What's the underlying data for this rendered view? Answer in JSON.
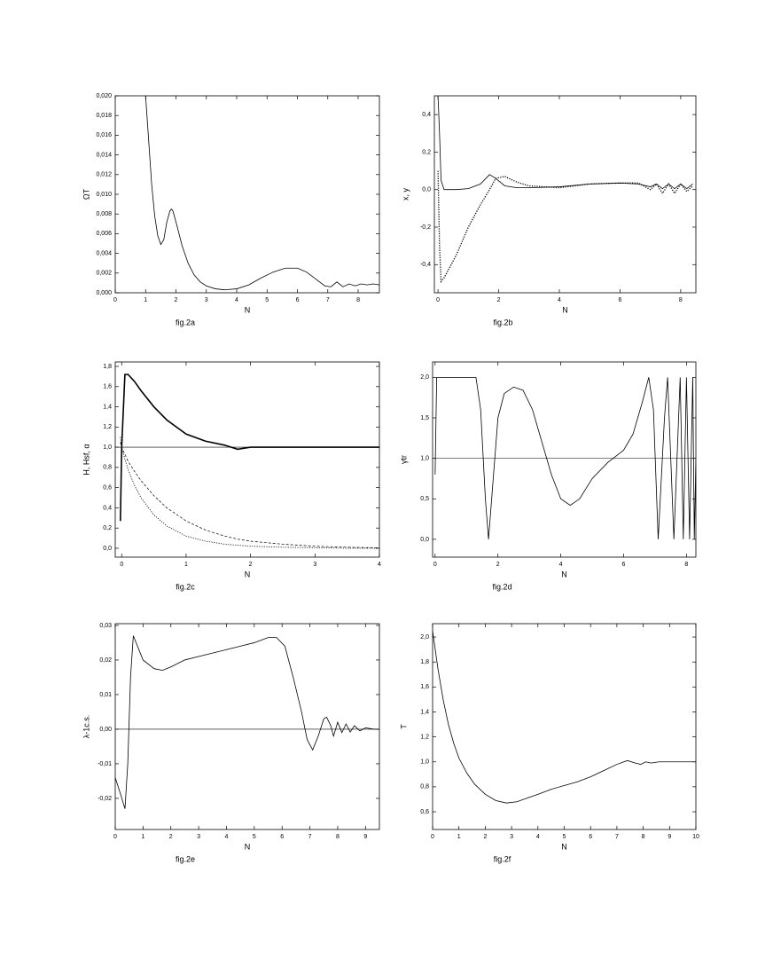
{
  "chart_data": [
    {
      "type": "line",
      "caption": "fig.2a",
      "x_label": "N",
      "y_label": "ΩT",
      "xlim": [
        0,
        8.7
      ],
      "xticks": [
        0,
        1,
        2,
        3,
        4,
        5,
        6,
        7,
        8
      ],
      "ylim": [
        0,
        0.02
      ],
      "yticks": [
        {
          "value": 0,
          "label": "0,000"
        },
        {
          "value": 0.002,
          "label": "0,002"
        },
        {
          "value": 0.004,
          "label": "0,004"
        },
        {
          "value": 0.006,
          "label": "0,006"
        },
        {
          "value": 0.008,
          "label": "0,008"
        },
        {
          "value": 0.01,
          "label": "0,010"
        },
        {
          "value": 0.012,
          "label": "0,012"
        },
        {
          "value": 0.014,
          "label": "0,014"
        },
        {
          "value": 0.016,
          "label": "0,016"
        },
        {
          "value": 0.018,
          "label": "0,018"
        },
        {
          "value": 0.02,
          "label": "0,020"
        }
      ],
      "x": [
        1.0,
        1.1,
        1.2,
        1.3,
        1.4,
        1.5,
        1.6,
        1.7,
        1.8,
        1.85,
        1.9,
        2.0,
        2.2,
        2.4,
        2.6,
        2.8,
        3.0,
        3.3,
        3.6,
        4.0,
        4.4,
        4.8,
        5.2,
        5.6,
        6.0,
        6.3,
        6.6,
        6.9,
        7.1,
        7.3,
        7.5,
        7.7,
        7.9,
        8.1,
        8.3,
        8.5,
        8.7
      ],
      "series": [
        {
          "color": "#000000",
          "style": "solid",
          "width": 0.8,
          "values": [
            0.02,
            0.0155,
            0.011,
            0.0078,
            0.0058,
            0.0049,
            0.0054,
            0.0072,
            0.0083,
            0.0085,
            0.0083,
            0.0072,
            0.0048,
            0.003,
            0.0018,
            0.0011,
            0.0007,
            0.0004,
            0.0003,
            0.0004,
            0.0008,
            0.0015,
            0.0021,
            0.0025,
            0.0025,
            0.0021,
            0.0014,
            0.0007,
            0.0006,
            0.0011,
            0.0006,
            0.0009,
            0.0007,
            0.0009,
            0.0008,
            0.0009,
            0.0008
          ]
        }
      ]
    },
    {
      "type": "line",
      "caption": "fig.2b",
      "x_label": "N",
      "y_label": "x, y",
      "xlim": [
        -0.12,
        8.5
      ],
      "xticks": [
        0,
        2,
        4,
        6,
        8
      ],
      "ylim": [
        -0.55,
        0.5
      ],
      "yticks": [
        {
          "value": -0.4,
          "label": "-0,4"
        },
        {
          "value": -0.2,
          "label": "-0,2"
        },
        {
          "value": 0,
          "label": "0,0"
        },
        {
          "value": 0.2,
          "label": "0,2"
        },
        {
          "value": 0.4,
          "label": "0,4"
        }
      ],
      "x": [
        0,
        0.05,
        0.1,
        0.2,
        0.6,
        1.0,
        1.4,
        1.7,
        1.9,
        2.2,
        2.6,
        3,
        4,
        5,
        6,
        6.6,
        7.0,
        7.2,
        7.4,
        7.6,
        7.8,
        8.0,
        8.2,
        8.4
      ],
      "series": [
        {
          "color": "#000000",
          "style": "solid",
          "width": 0.8,
          "values": [
            0.5,
            0.3,
            0.05,
            0.0,
            0.0,
            0.005,
            0.03,
            0.08,
            0.06,
            0.02,
            0.01,
            0.01,
            0.015,
            0.03,
            0.035,
            0.03,
            0.015,
            0.03,
            0.005,
            0.03,
            0.005,
            0.03,
            0.005,
            0.03
          ]
        },
        {
          "color": "#000000",
          "style": "dotted",
          "width": 1.3,
          "values": [
            0.1,
            -0.3,
            -0.49,
            -0.47,
            -0.35,
            -0.2,
            -0.08,
            0.0,
            0.06,
            0.07,
            0.04,
            0.02,
            0.01,
            0.03,
            0.035,
            0.035,
            0.0,
            0.03,
            -0.02,
            0.03,
            -0.02,
            0.03,
            -0.01,
            0.02
          ]
        }
      ]
    },
    {
      "type": "line",
      "caption": "fig.2c",
      "x_label": "N",
      "y_label": "H, Hsf, α",
      "hline": 1,
      "xlim": [
        -0.1,
        4
      ],
      "xticks": [
        0,
        1,
        2,
        3,
        4
      ],
      "ylim": [
        -0.088,
        1.844
      ],
      "yticks": [
        {
          "value": 0,
          "label": "0,0"
        },
        {
          "value": 0.2,
          "label": "0,2"
        },
        {
          "value": 0.4,
          "label": "0,4"
        },
        {
          "value": 0.6,
          "label": "0,6"
        },
        {
          "value": 0.8,
          "label": "0,8"
        },
        {
          "value": 1,
          "label": "1,0"
        },
        {
          "value": 1.2,
          "label": "1,2"
        },
        {
          "value": 1.4,
          "label": "1,4"
        },
        {
          "value": 1.6,
          "label": "1,6"
        },
        {
          "value": 1.8,
          "label": "1,8"
        }
      ],
      "x": [
        -0.02,
        0.0,
        0.05,
        0.1,
        0.2,
        0.3,
        0.5,
        0.7,
        1.0,
        1.3,
        1.6,
        1.8,
        2.0,
        2.5,
        3,
        3.5,
        4
      ],
      "series": [
        {
          "color": "#000000",
          "style": "solid",
          "width": 1.6,
          "values": [
            0.27,
            1.0,
            1.72,
            1.72,
            1.65,
            1.56,
            1.4,
            1.27,
            1.13,
            1.06,
            1.02,
            0.98,
            1.0,
            1.0,
            1.0,
            1.0,
            1.0
          ]
        },
        {
          "color": "#000000",
          "style": "dashed",
          "width": 0.7,
          "values": [
            1.05,
            1.0,
            0.93,
            0.86,
            0.76,
            0.67,
            0.52,
            0.4,
            0.27,
            0.18,
            0.12,
            0.09,
            0.07,
            0.04,
            0.02,
            0.01,
            0.005
          ]
        },
        {
          "color": "#000000",
          "style": "dotted",
          "width": 0.8,
          "values": [
            1.1,
            1.0,
            0.88,
            0.78,
            0.62,
            0.5,
            0.33,
            0.22,
            0.12,
            0.07,
            0.04,
            0.03,
            0.02,
            0.01,
            0.005,
            0.0,
            0.0
          ]
        }
      ]
    },
    {
      "type": "line",
      "caption": "fig.2d",
      "x_label": "N",
      "y_label": "γtr",
      "hline": 1,
      "xlim": [
        -0.08,
        8.3
      ],
      "xticks": [
        0,
        2,
        4,
        6,
        8
      ],
      "ylim": [
        -0.22,
        2.19
      ],
      "yticks": [
        {
          "value": 0,
          "label": "0,0"
        },
        {
          "value": 0.5,
          "label": "0,5"
        },
        {
          "value": 1,
          "label": "1,0"
        },
        {
          "value": 1.5,
          "label": "1,5"
        },
        {
          "value": 2,
          "label": "2,0"
        }
      ],
      "x": [
        0,
        0.05,
        1.3,
        1.45,
        1.6,
        1.7,
        1.8,
        2.0,
        2.2,
        2.5,
        2.8,
        3.1,
        3.4,
        3.7,
        4.0,
        4.3,
        4.6,
        5.0,
        5.5,
        6.0,
        6.3,
        6.6,
        6.8,
        6.95,
        7.1,
        7.3,
        7.4,
        7.5,
        7.6,
        7.7,
        7.8,
        7.9,
        8.0,
        8.1,
        8.2,
        8.25,
        8.3
      ],
      "series": [
        {
          "color": "#000000",
          "style": "solid",
          "width": 0.8,
          "values": [
            0.8,
            2.0,
            2.0,
            1.6,
            0.5,
            0.0,
            0.5,
            1.5,
            1.8,
            1.88,
            1.84,
            1.6,
            1.2,
            0.8,
            0.5,
            0.42,
            0.5,
            0.75,
            0.95,
            1.1,
            1.3,
            1.7,
            2.0,
            1.6,
            0.0,
            1.5,
            2.0,
            1.0,
            0.0,
            1.0,
            2.0,
            0.0,
            2.0,
            0.0,
            2.0,
            0.0,
            1.0
          ]
        }
      ]
    },
    {
      "type": "line",
      "caption": "fig.2e",
      "x_label": "N",
      "y_label": "λ-1c.s.",
      "hline": 0,
      "xlim": [
        0,
        9.5
      ],
      "xticks": [
        0,
        1,
        2,
        3,
        4,
        5,
        6,
        7,
        8,
        9
      ],
      "ylim": [
        -0.029,
        0.0305
      ],
      "yticks": [
        {
          "value": -0.02,
          "label": "-0,02"
        },
        {
          "value": -0.01,
          "label": "-0,01"
        },
        {
          "value": 0,
          "label": "0,00"
        },
        {
          "value": 0.01,
          "label": "0,01"
        },
        {
          "value": 0.02,
          "label": "0,02"
        },
        {
          "value": 0.03,
          "label": "0,03"
        }
      ],
      "x": [
        0,
        0.2,
        0.35,
        0.45,
        0.55,
        0.65,
        0.8,
        1.0,
        1.4,
        1.7,
        2.0,
        2.5,
        3,
        3.5,
        4,
        4.5,
        5,
        5.5,
        5.8,
        6.1,
        6.4,
        6.7,
        6.9,
        7.1,
        7.3,
        7.5,
        7.6,
        7.75,
        7.85,
        8.0,
        8.15,
        8.3,
        8.45,
        8.6,
        8.8,
        9.0,
        9.3,
        9.5
      ],
      "series": [
        {
          "color": "#000000",
          "style": "solid",
          "width": 0.8,
          "values": [
            -0.014,
            -0.019,
            -0.023,
            -0.01,
            0.015,
            0.027,
            0.024,
            0.02,
            0.0175,
            0.017,
            0.018,
            0.02,
            0.021,
            0.022,
            0.023,
            0.024,
            0.025,
            0.0265,
            0.0265,
            0.024,
            0.015,
            0.005,
            -0.003,
            -0.006,
            -0.002,
            0.003,
            0.0035,
            0.001,
            -0.002,
            0.002,
            -0.001,
            0.0015,
            -0.0008,
            0.001,
            -0.0005,
            0.0004,
            0.0,
            0.0
          ]
        }
      ]
    },
    {
      "type": "line",
      "caption": "fig.2f",
      "x_label": "N",
      "y_label": "T",
      "xlim": [
        0,
        10
      ],
      "xticks": [
        0,
        1,
        2,
        3,
        4,
        5,
        6,
        7,
        8,
        9,
        10
      ],
      "ylim": [
        0.458,
        2.107
      ],
      "yticks": [
        {
          "value": 0.6,
          "label": "0,6"
        },
        {
          "value": 0.8,
          "label": "0,8"
        },
        {
          "value": 1,
          "label": "1,0"
        },
        {
          "value": 1.2,
          "label": "1,2"
        },
        {
          "value": 1.4,
          "label": "1,4"
        },
        {
          "value": 1.6,
          "label": "1,6"
        },
        {
          "value": 1.8,
          "label": "1,8"
        },
        {
          "value": 2,
          "label": "2,0"
        }
      ],
      "x": [
        0,
        0.2,
        0.4,
        0.6,
        0.8,
        1.0,
        1.3,
        1.6,
        2.0,
        2.4,
        2.8,
        3.2,
        3.6,
        4.0,
        4.5,
        5,
        5.5,
        6,
        6.5,
        7,
        7.4,
        7.7,
        7.9,
        8.1,
        8.3,
        8.6,
        9,
        10
      ],
      "series": [
        {
          "color": "#000000",
          "style": "solid",
          "width": 0.8,
          "values": [
            2.05,
            1.75,
            1.5,
            1.3,
            1.15,
            1.03,
            0.91,
            0.82,
            0.74,
            0.69,
            0.67,
            0.68,
            0.71,
            0.74,
            0.78,
            0.81,
            0.84,
            0.88,
            0.93,
            0.98,
            1.01,
            0.99,
            0.98,
            1.0,
            0.99,
            1.0,
            1.0,
            1.0
          ]
        }
      ]
    }
  ]
}
